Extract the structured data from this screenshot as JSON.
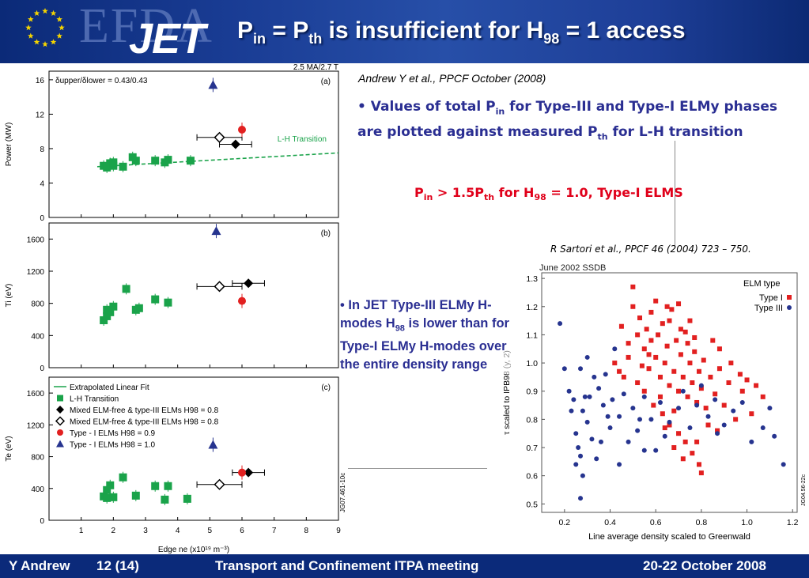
{
  "header": {
    "title_main_1": "P",
    "title_sub_1": "in",
    "title_main_2": " = P",
    "title_sub_2": "th",
    "title_main_3": " is insufficient for H",
    "title_sub_3": "98",
    "title_main_4": " = 1 access",
    "logo_efda": "EFDA",
    "logo_jet": "JET"
  },
  "citations": {
    "andrew": "Andrew Y et al., PPCF October (2008)",
    "sartori": "R Sartori et al., PPCF 46 (2004) 723 – 750."
  },
  "bullet1": {
    "t1": "• Values of total P",
    "s1": "in",
    "t2": " for Type-III and Type-I ELMy phases are plotted against measured P",
    "s2": "th",
    "t3": " for L-H transition"
  },
  "red_statement": {
    "t1": "P",
    "s1": "in",
    "t2": " > 1.5P",
    "s2": "th",
    "t3": " for H",
    "s3": "98",
    "t4": " = 1.0, Type-I ELMS"
  },
  "bullet2": {
    "t1": "• In JET Type-III ELMy H-modes H",
    "s1": "98",
    "t2": " is lower than for Type-I ELMy H-modes over the entire density range"
  },
  "footer": {
    "author": "Y Andrew",
    "page": "12 (14)",
    "meeting": "Transport and Confinement ITPA meeting",
    "date": "20-22 October 2008"
  },
  "colors": {
    "green": "#1aa34a",
    "red": "#e22020",
    "blue": "#26348f",
    "black": "#000000",
    "navy": "#0b2a7a"
  },
  "chart_data": [
    {
      "type": "scatter",
      "panel": "(a)",
      "top_label": "2.5 MA/2.7 T",
      "annotation": "δupper/δlower = 0.43/0.43",
      "line_label": "L-H Transition",
      "ylabel": "Power (MW)",
      "xlim": [
        0,
        9
      ],
      "ylim": [
        0,
        17
      ],
      "yticks": [
        0,
        4,
        8,
        12,
        16
      ],
      "series": [
        {
          "name": "L-H Transition",
          "marker": "square",
          "color": "green",
          "points": [
            [
              1.7,
              6.0
            ],
            [
              1.8,
              5.8
            ],
            [
              1.9,
              6.3
            ],
            [
              2.0,
              6.0
            ],
            [
              2.0,
              6.4
            ],
            [
              2.3,
              5.9
            ],
            [
              2.6,
              7.0
            ],
            [
              2.7,
              6.6
            ],
            [
              3.3,
              6.6
            ],
            [
              3.6,
              6.4
            ],
            [
              3.7,
              6.7
            ],
            [
              4.4,
              6.6
            ]
          ]
        },
        {
          "name": "Mixed ELM-free & type-III ELMs H98 = 0.8",
          "marker": "diamond-filled",
          "color": "black",
          "points": [
            [
              5.8,
              8.5
            ]
          ],
          "xerr": 0.5
        },
        {
          "name": "Mixed ELM-free & type-III ELMs H98 = 0.8",
          "marker": "diamond-open",
          "color": "black",
          "points": [
            [
              5.3,
              9.3
            ]
          ],
          "xerr": 0.7
        },
        {
          "name": "Type - I ELMs H98 = 0.9",
          "marker": "circle",
          "color": "red",
          "points": [
            [
              6.0,
              10.2
            ]
          ]
        },
        {
          "name": "Type - I ELMs H98 = 1.0",
          "marker": "triangle",
          "color": "blue",
          "points": [
            [
              5.1,
              15.4
            ]
          ]
        }
      ],
      "fit_line": [
        [
          1.5,
          5.9
        ],
        [
          9.0,
          7.5
        ]
      ]
    },
    {
      "type": "scatter",
      "panel": "(b)",
      "ylabel": "Ti (eV)",
      "xlim": [
        0,
        9
      ],
      "ylim": [
        0,
        1800
      ],
      "yticks": [
        0,
        400,
        800,
        1200,
        1600
      ],
      "series": [
        {
          "name": "L-H Transition",
          "marker": "square",
          "color": "green",
          "points": [
            [
              1.7,
              590
            ],
            [
              1.8,
              640
            ],
            [
              1.8,
              720
            ],
            [
              1.9,
              690
            ],
            [
              2.0,
              760
            ],
            [
              2.4,
              980
            ],
            [
              2.7,
              720
            ],
            [
              2.8,
              740
            ],
            [
              3.3,
              850
            ],
            [
              3.7,
              810
            ]
          ]
        },
        {
          "name": "Mixed ELM-free & type-III ELMs H98 = 0.8",
          "marker": "diamond-filled",
          "color": "black",
          "points": [
            [
              6.2,
              1050
            ]
          ],
          "xerr": 0.5
        },
        {
          "name": "Mixed ELM-free & type-III ELMs H98 = 0.8",
          "marker": "diamond-open",
          "color": "black",
          "points": [
            [
              5.3,
              1010
            ]
          ],
          "xerr": 0.7
        },
        {
          "name": "Type - I ELMs H98 = 0.9",
          "marker": "circle",
          "color": "red",
          "points": [
            [
              6.0,
              830
            ]
          ]
        },
        {
          "name": "Type - I ELMs H98 = 1.0",
          "marker": "triangle",
          "color": "blue",
          "points": [
            [
              5.2,
              1700
            ]
          ]
        }
      ]
    },
    {
      "type": "scatter",
      "panel": "(c)",
      "side_label": "JG07.461-10c",
      "xlabel": "Edge ne  (x10¹⁹ m⁻³)",
      "ylabel": "Te (eV)",
      "xlim": [
        0,
        9
      ],
      "ylim": [
        0,
        1800
      ],
      "xticks": [
        1,
        2,
        3,
        4,
        5,
        6,
        7,
        8,
        9
      ],
      "yticks": [
        0,
        400,
        800,
        1200,
        1600
      ],
      "legend": [
        {
          "label": "Extrapolated Linear Fit",
          "marker": "line",
          "color": "green"
        },
        {
          "label": "L-H Transition",
          "marker": "square",
          "color": "green"
        },
        {
          "label": "Mixed ELM-free & type-III ELMs H98 = 0.8",
          "marker": "diamond-filled",
          "color": "black"
        },
        {
          "label": "Mixed ELM-free & type-III ELMs H98 = 0.8",
          "marker": "diamond-open",
          "color": "black"
        },
        {
          "label": "Type - I ELMs H98 = 0.9",
          "marker": "circle",
          "color": "red"
        },
        {
          "label": "Type - I ELMs H98 = 1.0",
          "marker": "triangle",
          "color": "blue"
        }
      ],
      "series": [
        {
          "name": "L-H Transition",
          "marker": "square",
          "color": "green",
          "points": [
            [
              1.7,
              300
            ],
            [
              1.8,
              280
            ],
            [
              1.8,
              380
            ],
            [
              1.9,
              440
            ],
            [
              2.0,
              290
            ],
            [
              2.3,
              540
            ],
            [
              2.7,
              310
            ],
            [
              3.3,
              430
            ],
            [
              3.6,
              260
            ],
            [
              3.7,
              430
            ],
            [
              4.3,
              270
            ]
          ]
        },
        {
          "name": "Mixed ELM-free & type-III ELMs H98 = 0.8",
          "marker": "diamond-filled",
          "color": "black",
          "points": [
            [
              6.2,
              600
            ]
          ],
          "xerr": 0.5
        },
        {
          "name": "Mixed ELM-free & type-III ELMs H98 = 0.8",
          "marker": "diamond-open",
          "color": "black",
          "points": [
            [
              5.3,
              450
            ]
          ],
          "xerr": 0.7
        },
        {
          "name": "Type - I ELMs H98 = 0.9",
          "marker": "circle",
          "color": "red",
          "points": [
            [
              6.0,
              600
            ]
          ]
        },
        {
          "name": "Type - I ELMs H98 = 1.0",
          "marker": "triangle",
          "color": "blue",
          "points": [
            [
              5.1,
              950
            ]
          ]
        }
      ]
    },
    {
      "type": "scatter",
      "title": "June 2002 SSDB",
      "side_label": "JG04.56-22c",
      "xlabel": "Line average density scaled to Greenwald",
      "ylabel": "τ scaled to IPB98 (y, 2)",
      "xlim": [
        0.1,
        1.22
      ],
      "ylim": [
        0.47,
        1.32
      ],
      "xticks": [
        0.2,
        0.4,
        0.6,
        0.8,
        1.0,
        1.2
      ],
      "yticks": [
        0.5,
        0.6,
        0.7,
        0.8,
        0.9,
        1.0,
        1.1,
        1.2,
        1.3
      ],
      "legend_title": "ELM type",
      "series": [
        {
          "name": "Type I",
          "marker": "square",
          "color": "red",
          "points": [
            [
              0.45,
              1.13
            ],
            [
              0.48,
              1.07
            ],
            [
              0.5,
              1.2
            ],
            [
              0.52,
              1.1
            ],
            [
              0.53,
              1.16
            ],
            [
              0.55,
              1.05
            ],
            [
              0.56,
              1.12
            ],
            [
              0.57,
              0.98
            ],
            [
              0.58,
              1.18
            ],
            [
              0.6,
              1.02
            ],
            [
              0.61,
              1.1
            ],
            [
              0.62,
              0.95
            ],
            [
              0.63,
              1.14
            ],
            [
              0.64,
              1.0
            ],
            [
              0.65,
              1.06
            ],
            [
              0.66,
              0.92
            ],
            [
              0.67,
              1.19
            ],
            [
              0.68,
              0.97
            ],
            [
              0.69,
              1.08
            ],
            [
              0.7,
              0.9
            ],
            [
              0.71,
              1.03
            ],
            [
              0.72,
              0.95
            ],
            [
              0.73,
              1.11
            ],
            [
              0.74,
              0.88
            ],
            [
              0.75,
              1.0
            ],
            [
              0.76,
              0.93
            ],
            [
              0.77,
              1.04
            ],
            [
              0.78,
              0.86
            ],
            [
              0.79,
              0.97
            ],
            [
              0.8,
              0.91
            ],
            [
              0.81,
              1.01
            ],
            [
              0.82,
              0.84
            ],
            [
              0.84,
              0.95
            ],
            [
              0.86,
              0.89
            ],
            [
              0.88,
              0.98
            ],
            [
              0.9,
              0.85
            ],
            [
              0.92,
              0.93
            ],
            [
              0.95,
              0.8
            ],
            [
              0.98,
              0.9
            ],
            [
              1.02,
              0.82
            ],
            [
              1.07,
              0.88
            ],
            [
              0.42,
              1.0
            ],
            [
              0.46,
              0.95
            ],
            [
              0.5,
              1.27
            ],
            [
              0.55,
              0.9
            ],
            [
              0.59,
              0.85
            ],
            [
              0.63,
              0.82
            ],
            [
              0.66,
              0.78
            ],
            [
              0.7,
              0.75
            ],
            [
              0.73,
              0.72
            ],
            [
              0.76,
              0.68
            ],
            [
              0.79,
              0.64
            ],
            [
              0.8,
              0.61
            ],
            [
              0.6,
              1.22
            ],
            [
              0.65,
              1.2
            ],
            [
              0.7,
              1.21
            ],
            [
              0.75,
              1.15
            ],
            [
              0.85,
              1.08
            ],
            [
              0.62,
              0.88
            ],
            [
              0.68,
              0.83
            ],
            [
              0.58,
              1.08
            ],
            [
              0.54,
              0.99
            ],
            [
              0.52,
              0.93
            ],
            [
              0.88,
              1.05
            ],
            [
              0.93,
              1.0
            ],
            [
              0.97,
              0.96
            ],
            [
              1.0,
              0.94
            ],
            [
              1.04,
              0.92
            ],
            [
              0.83,
              0.78
            ],
            [
              0.87,
              0.76
            ],
            [
              0.78,
              0.72
            ],
            [
              0.72,
              0.66
            ],
            [
              0.68,
              0.7
            ],
            [
              0.64,
              0.77
            ],
            [
              0.57,
              1.03
            ],
            [
              0.48,
              1.02
            ],
            [
              0.44,
              0.97
            ],
            [
              0.66,
              1.15
            ],
            [
              0.71,
              1.12
            ],
            [
              0.74,
              1.07
            ],
            [
              0.77,
              1.09
            ]
          ]
        },
        {
          "name": "Type III",
          "marker": "circle",
          "color": "blue",
          "points": [
            [
              0.18,
              1.14
            ],
            [
              0.2,
              0.98
            ],
            [
              0.22,
              0.9
            ],
            [
              0.24,
              0.87
            ],
            [
              0.25,
              0.75
            ],
            [
              0.26,
              0.7
            ],
            [
              0.27,
              0.98
            ],
            [
              0.27,
              0.67
            ],
            [
              0.28,
              0.83
            ],
            [
              0.29,
              0.88
            ],
            [
              0.3,
              1.02
            ],
            [
              0.3,
              0.79
            ],
            [
              0.32,
              0.73
            ],
            [
              0.33,
              0.95
            ],
            [
              0.34,
              0.66
            ],
            [
              0.35,
              0.91
            ],
            [
              0.36,
              0.72
            ],
            [
              0.37,
              0.85
            ],
            [
              0.38,
              0.96
            ],
            [
              0.4,
              0.77
            ],
            [
              0.41,
              0.87
            ],
            [
              0.42,
              1.05
            ],
            [
              0.44,
              0.81
            ],
            [
              0.46,
              0.89
            ],
            [
              0.48,
              0.72
            ],
            [
              0.5,
              0.84
            ],
            [
              0.52,
              0.76
            ],
            [
              0.55,
              0.88
            ],
            [
              0.58,
              0.8
            ],
            [
              0.6,
              0.69
            ],
            [
              0.62,
              0.86
            ],
            [
              0.64,
              0.74
            ],
            [
              0.66,
              0.79
            ],
            [
              0.7,
              0.84
            ],
            [
              0.72,
              0.9
            ],
            [
              0.75,
              0.77
            ],
            [
              0.78,
              0.85
            ],
            [
              0.8,
              0.92
            ],
            [
              0.83,
              0.81
            ],
            [
              0.86,
              0.87
            ],
            [
              0.9,
              0.78
            ],
            [
              0.94,
              0.83
            ],
            [
              0.98,
              0.86
            ],
            [
              1.02,
              0.72
            ],
            [
              1.07,
              0.77
            ],
            [
              1.1,
              0.84
            ],
            [
              1.12,
              0.74
            ],
            [
              1.16,
              0.64
            ],
            [
              0.27,
              0.52
            ],
            [
              0.25,
              0.64
            ],
            [
              0.28,
              0.6
            ],
            [
              0.44,
              0.64
            ],
            [
              0.55,
              0.69
            ],
            [
              0.87,
              0.75
            ],
            [
              0.23,
              0.83
            ],
            [
              0.31,
              0.88
            ],
            [
              0.39,
              0.81
            ],
            [
              0.53,
              0.8
            ]
          ]
        }
      ]
    }
  ]
}
